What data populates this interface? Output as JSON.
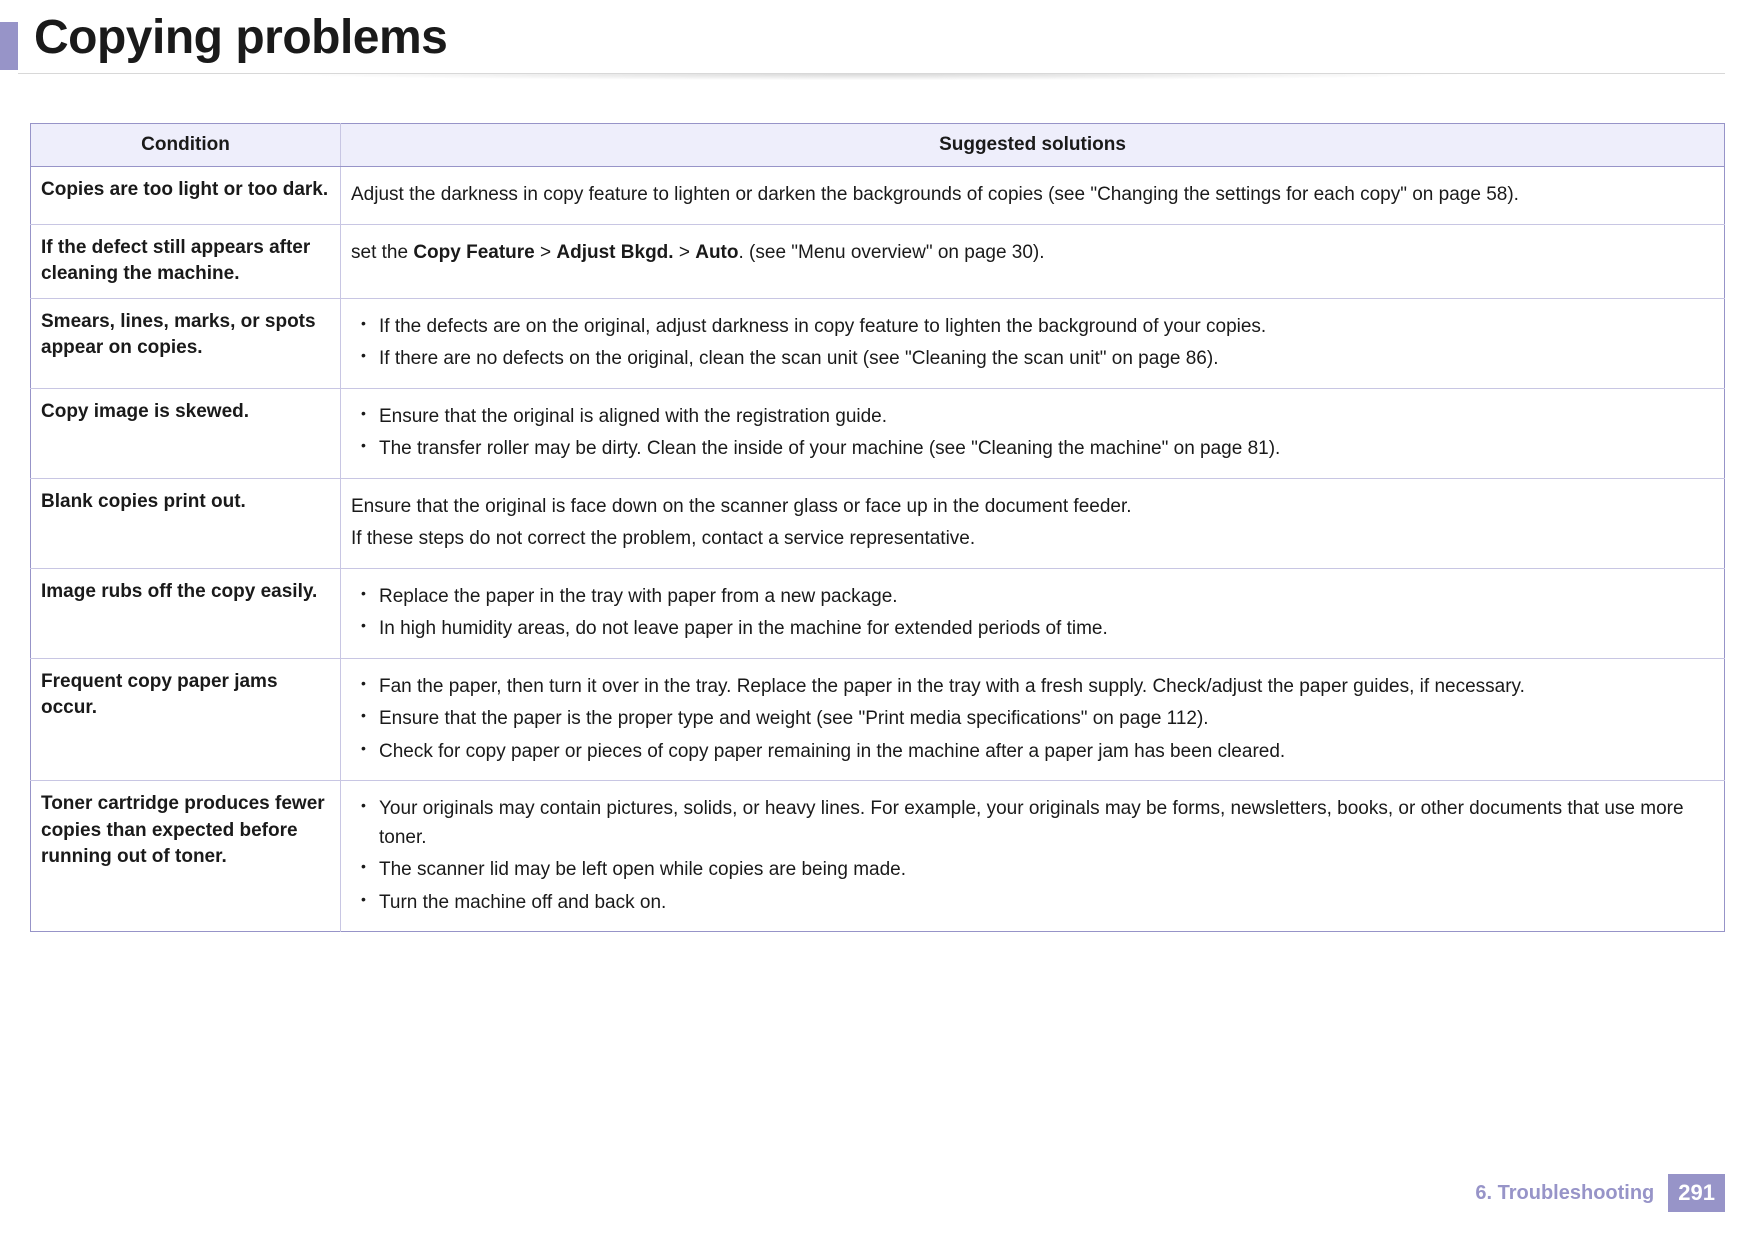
{
  "title": "Copying problems",
  "table": {
    "headers": {
      "condition": "Condition",
      "solutions": "Suggested solutions"
    },
    "rows": [
      {
        "condition": "Copies are too light or too dark.",
        "solution_html": "Adjust the darkness in copy feature to lighten or darken the backgrounds of copies (see \"Changing the settings for each copy\" on page 58)."
      },
      {
        "condition": "If the defect still appears after cleaning the machine.",
        "solution_html": "set the <b>Copy Feature</b> > <b>Adjust Bkgd.</b> > <b>Auto</b>. (see \"Menu overview\" on page 30)."
      },
      {
        "condition": "Smears, lines, marks, or spots appear on copies.",
        "bullets": [
          "If the defects are on the original, adjust darkness in copy feature to lighten the background of your copies.",
          "If there are no defects on the original, clean the scan unit (see \"Cleaning the scan unit\" on page 86)."
        ]
      },
      {
        "condition": "Copy image is skewed.",
        "bullets": [
          "Ensure that the original is aligned with the registration guide.",
          "The transfer roller may be dirty. Clean the inside of your machine (see \"Cleaning the machine\" on page 81)."
        ]
      },
      {
        "condition": "Blank copies print out.",
        "paragraphs": [
          "Ensure that the original is face down on the scanner glass or face up in the document feeder.",
          "If these steps do not correct the problem, contact a service representative."
        ]
      },
      {
        "condition": "Image rubs off the copy easily.",
        "bullets": [
          "Replace the paper in the tray with paper from a new package.",
          "In high humidity areas, do not leave paper in the machine for extended periods of time."
        ]
      },
      {
        "condition": "Frequent copy paper jams occur.",
        "bullets": [
          "Fan the paper, then turn it over in the tray. Replace the paper in the tray with a fresh supply. Check/adjust the paper guides, if necessary.",
          "Ensure that the paper is the proper type and weight (see \"Print media specifications\" on page 112).",
          "Check for copy paper or pieces of copy paper remaining in the machine after a paper jam has been cleared."
        ]
      },
      {
        "condition": "Toner cartridge produces fewer copies than expected before running out of toner.",
        "bullets": [
          "Your originals may contain pictures, solids, or heavy lines. For example, your originals may be forms, newsletters, books, or other documents that use more toner.",
          "The scanner lid may be left open while copies are being made.",
          "Turn the machine off and back on."
        ]
      }
    ]
  },
  "footer": {
    "chapter": "6.  Troubleshooting",
    "page": "291"
  },
  "colors": {
    "accent": "#9794c8",
    "header_bg": "#eeeefb",
    "text": "#1a1a1a"
  }
}
